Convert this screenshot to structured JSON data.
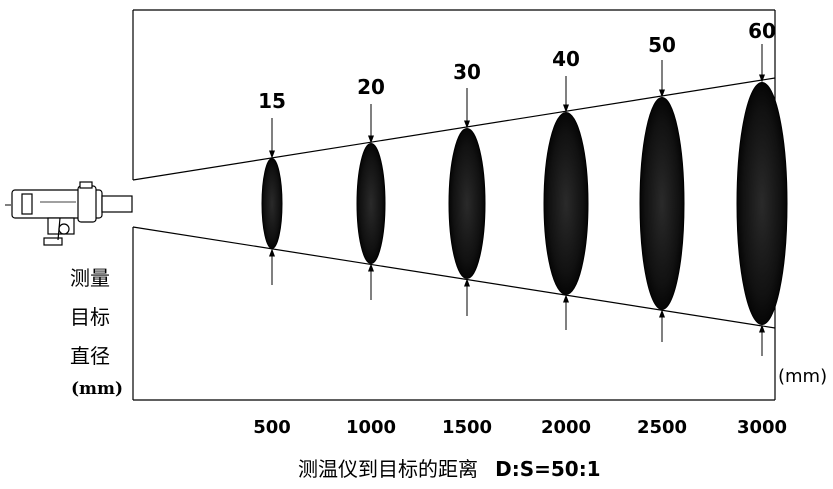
{
  "distance_unit": "(mm)",
  "y_axis_label_lines": [
    "测量",
    "目标",
    "直径",
    "(mm)"
  ],
  "caption_cn": "测温仪到目标的距离",
  "caption_ratio": "D:S=50:1",
  "spots": [
    {
      "distance": "500",
      "diameter": "15"
    },
    {
      "distance": "1000",
      "diameter": "20"
    },
    {
      "distance": "1500",
      "diameter": "30"
    },
    {
      "distance": "2000",
      "diameter": "40"
    },
    {
      "distance": "2500",
      "diameter": "50"
    },
    {
      "distance": "3000",
      "diameter": "60"
    }
  ]
}
